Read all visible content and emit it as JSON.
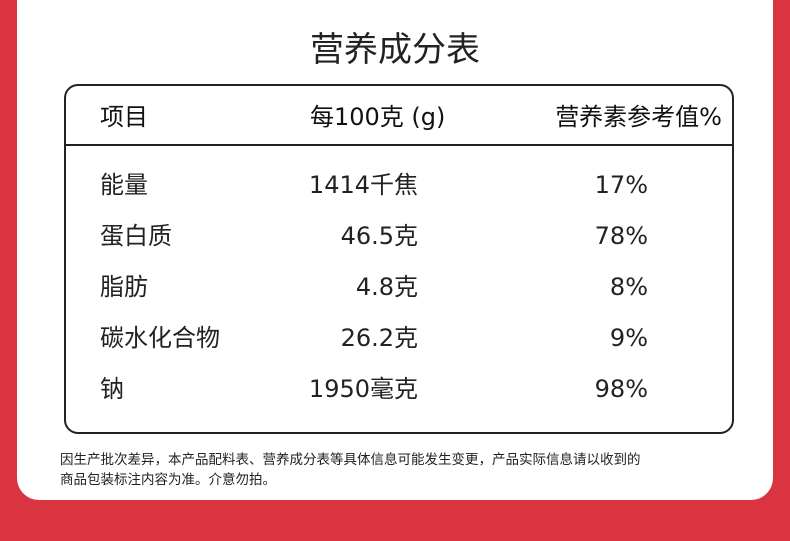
{
  "title": "营养成分表",
  "table": {
    "headers": [
      "项目",
      "每100克 (g)",
      "营养素参考值%"
    ],
    "rows": [
      [
        "能量",
        "1414千焦",
        "17%"
      ],
      [
        "蛋白质",
        "46.5克",
        "78%"
      ],
      [
        "脂肪",
        "4.8克",
        "8%"
      ],
      [
        "碳水化合物",
        "26.2克",
        "9%"
      ],
      [
        "钠",
        "1950毫克",
        "98%"
      ]
    ]
  },
  "note": [
    "因生产批次差异，本产品配料表、营养成分表等具体信息可能发生变更，产品实际信息请以收到的",
    "商品包装标注内容为准。介意勿拍。"
  ]
}
